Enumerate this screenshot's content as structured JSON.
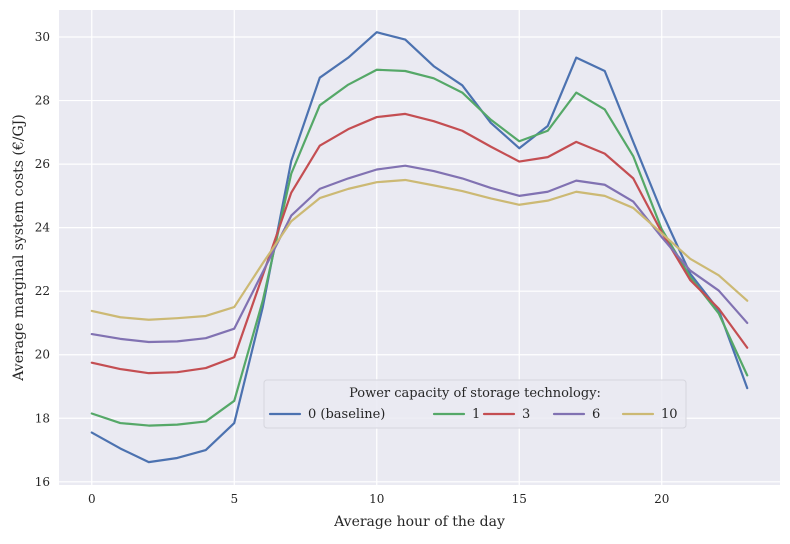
{
  "chart_data": {
    "type": "line",
    "title": "",
    "xlabel": "Average hour of the day",
    "ylabel": "Average marginal system costs (€/GJ)",
    "xlim": [
      -1.15,
      24.15
    ],
    "ylim": [
      15.9,
      30.85
    ],
    "x_ticks": [
      0,
      5,
      10,
      15,
      20
    ],
    "y_ticks": [
      16,
      18,
      20,
      22,
      24,
      26,
      28,
      30
    ],
    "grid": true,
    "legend": {
      "title": "Power capacity of storage technology:",
      "placement": "lower-center",
      "columns": 5
    },
    "x": [
      0,
      1,
      2,
      3,
      4,
      5,
      6,
      7,
      8,
      9,
      10,
      11,
      12,
      13,
      14,
      15,
      16,
      17,
      18,
      19,
      20,
      21,
      22,
      23
    ],
    "series": [
      {
        "name": "0 (baseline)",
        "color": "#4c72b0",
        "values": [
          17.55,
          17.05,
          16.62,
          16.75,
          17.0,
          17.85,
          21.5,
          26.1,
          28.72,
          29.35,
          30.15,
          29.92,
          29.08,
          28.48,
          27.3,
          26.5,
          27.2,
          29.35,
          28.93,
          26.7,
          24.5,
          22.55,
          21.4,
          18.95
        ]
      },
      {
        "name": "1",
        "color": "#55a868",
        "values": [
          18.15,
          17.85,
          17.77,
          17.8,
          17.9,
          18.55,
          21.7,
          25.7,
          27.85,
          28.5,
          28.97,
          28.93,
          28.7,
          28.25,
          27.4,
          26.72,
          27.05,
          28.25,
          27.72,
          26.25,
          23.95,
          22.45,
          21.3,
          19.35
        ]
      },
      {
        "name": "3",
        "color": "#c44e52",
        "values": [
          19.75,
          19.55,
          19.42,
          19.45,
          19.58,
          19.92,
          22.5,
          25.1,
          26.58,
          27.1,
          27.48,
          27.58,
          27.35,
          27.05,
          26.55,
          26.08,
          26.22,
          26.7,
          26.33,
          25.55,
          23.85,
          22.35,
          21.45,
          20.22
        ]
      },
      {
        "name": "6",
        "color": "#8172b2",
        "values": [
          20.65,
          20.5,
          20.4,
          20.42,
          20.52,
          20.82,
          22.6,
          24.38,
          25.22,
          25.55,
          25.83,
          25.95,
          25.78,
          25.55,
          25.25,
          25.0,
          25.13,
          25.48,
          25.35,
          24.82,
          23.7,
          22.65,
          22.02,
          21.0
        ]
      },
      {
        "name": "10",
        "color": "#ccb974",
        "values": [
          21.38,
          21.18,
          21.1,
          21.15,
          21.22,
          21.5,
          22.88,
          24.2,
          24.93,
          25.22,
          25.43,
          25.5,
          25.33,
          25.15,
          24.92,
          24.72,
          24.85,
          25.13,
          25.0,
          24.62,
          23.82,
          23.02,
          22.5,
          21.7
        ]
      }
    ]
  }
}
